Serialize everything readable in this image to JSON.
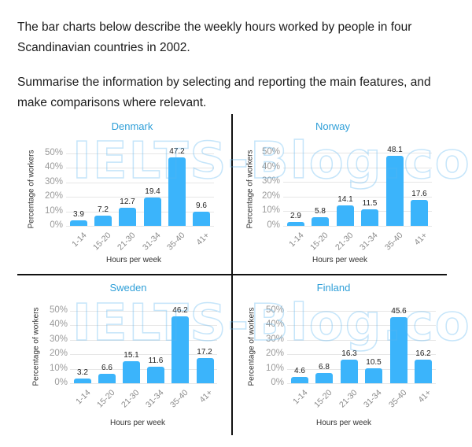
{
  "prompt": {
    "paragraph_1": "The bar charts below describe the weekly hours worked by people in four Scandinavian countries in 2002.",
    "paragraph_2": "Summarise the information by selecting and reporting the main features, and make comparisons where relevant."
  },
  "watermark": "IELTS-Blog.com",
  "colors": {
    "bar": "#3bb4fb",
    "title": "#2f9fd8",
    "grid": "#e6e6e6"
  },
  "chart_data": [
    {
      "type": "bar",
      "title": "Denmark",
      "categories": [
        "1-14",
        "15-20",
        "21-30",
        "31-34",
        "35-40",
        "41+"
      ],
      "values": [
        3.9,
        7.2,
        12.7,
        19.4,
        47.2,
        9.6
      ],
      "value_labels": [
        "3.9",
        "7.2",
        "12.7",
        "19.4",
        "47.2",
        "9.6"
      ],
      "xlabel": "Hours per week",
      "ylabel": "Percentage of workers",
      "yticks": [
        "0%",
        "10%",
        "20%",
        "30%",
        "40%",
        "50%"
      ],
      "ylim": [
        0,
        50
      ],
      "grid": true,
      "legend": "none"
    },
    {
      "type": "bar",
      "title": "Norway",
      "categories": [
        "1-14",
        "15-20",
        "21-30",
        "31-34",
        "35-40",
        "41+"
      ],
      "values": [
        2.9,
        5.8,
        14.1,
        11.5,
        48.1,
        17.6
      ],
      "value_labels": [
        "2.9",
        "5.8",
        "14.1",
        "11.5",
        "48.1",
        "17.6"
      ],
      "xlabel": "Hours per week",
      "ylabel": "Percentage of workers",
      "yticks": [
        "0%",
        "10%",
        "20%",
        "30%",
        "40%",
        "50%"
      ],
      "ylim": [
        0,
        50
      ],
      "grid": true,
      "legend": "none"
    },
    {
      "type": "bar",
      "title": "Sweden",
      "categories": [
        "1-14",
        "15-20",
        "21-30",
        "31-34",
        "35-40",
        "41+"
      ],
      "values": [
        3.2,
        6.6,
        15.1,
        11.6,
        46.2,
        17.2
      ],
      "value_labels": [
        "3.2",
        "6.6",
        "15.1",
        "11.6",
        "46.2",
        "17.2"
      ],
      "xlabel": "Hours per week",
      "ylabel": "Percentage of workers",
      "yticks": [
        "0%",
        "10%",
        "20%",
        "30%",
        "40%",
        "50%"
      ],
      "ylim": [
        0,
        50
      ],
      "grid": true,
      "legend": "none"
    },
    {
      "type": "bar",
      "title": "Finland",
      "categories": [
        "1-14",
        "15-20",
        "21-30",
        "31-34",
        "35-40",
        "41+"
      ],
      "values": [
        4.6,
        6.8,
        16.3,
        10.5,
        45.6,
        16.2
      ],
      "value_labels": [
        "4.6",
        "6.8",
        "16.3",
        "10.5",
        "45.6",
        "16.2"
      ],
      "xlabel": "Hours per week",
      "ylabel": "Percentage of workers",
      "yticks": [
        "0%",
        "10%",
        "20%",
        "30%",
        "40%",
        "50%"
      ],
      "ylim": [
        0,
        50
      ],
      "grid": true,
      "legend": "none"
    }
  ]
}
